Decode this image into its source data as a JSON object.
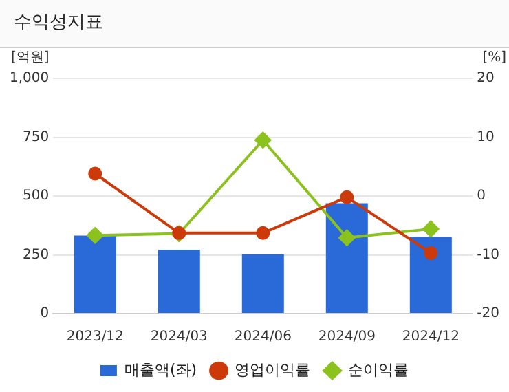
{
  "chart_data": {
    "type": "bar",
    "title": "수익성지표",
    "ylabel": "[억원]",
    "y2label": "[%]",
    "categories": [
      "2023/12",
      "2024/03",
      "2024/06",
      "2024/09",
      "2024/12"
    ],
    "series": [
      {
        "name": "매출액(좌)",
        "color": "#2a6ad8",
        "values": [
          332,
          272,
          252,
          469,
          326
        ]
      },
      {
        "name": "영업이익률",
        "type": "line",
        "axis": "y2",
        "color": "#cc3a0a",
        "marker": "circle",
        "values": [
          3.8,
          -6.3,
          -6.3,
          -0.2,
          -9.7
        ]
      },
      {
        "name": "순이익률",
        "type": "line",
        "axis": "y2",
        "color": "#8cc21e",
        "marker": "diamond",
        "values": [
          -6.7,
          -6.4,
          9.5,
          -7.1,
          -5.6
        ]
      }
    ],
    "ylim": [
      0,
      1000
    ],
    "yticks": [
      0,
      250,
      500,
      750,
      {
        "value": 1000,
        "label": "1,000"
      }
    ],
    "y2lim": [
      -20,
      20
    ],
    "y2ticks": [
      -20,
      -10,
      0,
      10,
      20
    ],
    "grid": "y",
    "legend": "bottom"
  }
}
